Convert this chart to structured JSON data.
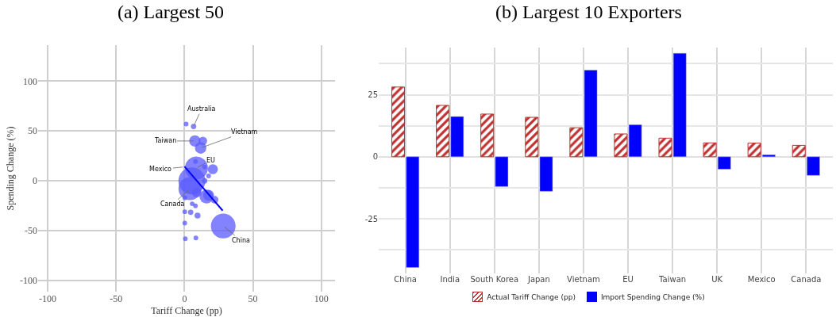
{
  "chart_data": [
    {
      "type": "bubble",
      "title": "(a) Largest 50",
      "xlabel": "Tariff Change (pp)",
      "ylabel": "Spending Change (%)",
      "xlim": [
        -107,
        110
      ],
      "ylim": [
        -111,
        136
      ],
      "xticks": [
        -100,
        -50,
        0,
        50,
        100
      ],
      "yticks": [
        -100,
        -50,
        0,
        50,
        100
      ],
      "grid": true,
      "legend": false,
      "series": [
        {
          "color": "#5a5aff",
          "x": [
            1.2,
            6.6,
            7.6,
            13.4,
            11.8,
            8,
            8.7,
            14.7,
            20.7,
            17.6,
            14.7,
            5.4,
            4,
            8.9,
            16,
            17.6,
            22,
            0.2,
            5.6,
            8,
            0.2,
            4.5,
            9.5,
            0.2,
            28.3,
            0.6,
            8.3
          ],
          "values": [
            57,
            54.5,
            40,
            40,
            33,
            19.4,
            12.8,
            14,
            11.7,
            5,
            0,
            0,
            -7.7,
            -11.7,
            -15.7,
            -14.4,
            -18.9,
            -17,
            -22.9,
            -25,
            -30.9,
            -31.4,
            -34.8,
            -42.3,
            -45.2,
            -58,
            -57.2
          ],
          "sizes": [
            0.03,
            0.04,
            0.18,
            0.1,
            0.18,
            0.03,
            0.73,
            0.03,
            0.14,
            0.03,
            0.04,
            1,
            0.73,
            0.12,
            0.26,
            0.16,
            0.08,
            0.03,
            0.03,
            0.03,
            0.03,
            0.04,
            0.05,
            0.03,
            0.84,
            0.03,
            0.03
          ]
        },
        {
          "type": "line",
          "color": "#0000ff",
          "x": [
            0,
            27.9
          ],
          "values": [
            14.4,
            -29.8
          ]
        }
      ],
      "annotations": [
        {
          "text": "Australia",
          "x": 6.6,
          "y": 54.5
        },
        {
          "text": "Taiwan",
          "x": 7.6,
          "y": 40
        },
        {
          "text": "Vietnam",
          "x": 11.8,
          "y": 33
        },
        {
          "text": "EU",
          "x": 8.7,
          "y": 12.8
        },
        {
          "text": "Mexico",
          "x": 0,
          "y": 14
        },
        {
          "text": "Canada",
          "x": 4,
          "y": -7.7
        },
        {
          "text": "China",
          "x": 28.3,
          "y": -45.2
        }
      ]
    },
    {
      "type": "bar",
      "title": "(b) Largest 10 Exporters",
      "categories": [
        "China",
        "India",
        "South Korea",
        "Japan",
        "Vietnam",
        "EU",
        "Taiwan",
        "UK",
        "Mexico",
        "Canada"
      ],
      "ylim": [
        -47,
        44
      ],
      "yticks": [
        {
          "value": -37.5,
          "label": null
        },
        -25,
        {
          "value": -12.5,
          "label": null
        },
        0,
        {
          "value": 12.5,
          "label": null
        },
        25,
        {
          "value": 37.5,
          "label": null
        }
      ],
      "grid": true,
      "legend": "bottom",
      "series": [
        {
          "name": "Actual Tariff Change (pp)",
          "color": "#c03030",
          "values": [
            28.1,
            20.7,
            17.2,
            15.9,
            11.7,
            9.2,
            7.5,
            5.6,
            5.5,
            4.6
          ]
        },
        {
          "name": "Import Spending Change (%)",
          "color": "#0000ff",
          "values": [
            -44.6,
            16.2,
            -12,
            -13.9,
            34.9,
            12.9,
            41.7,
            -5,
            0.8,
            -7.5
          ]
        }
      ]
    }
  ]
}
